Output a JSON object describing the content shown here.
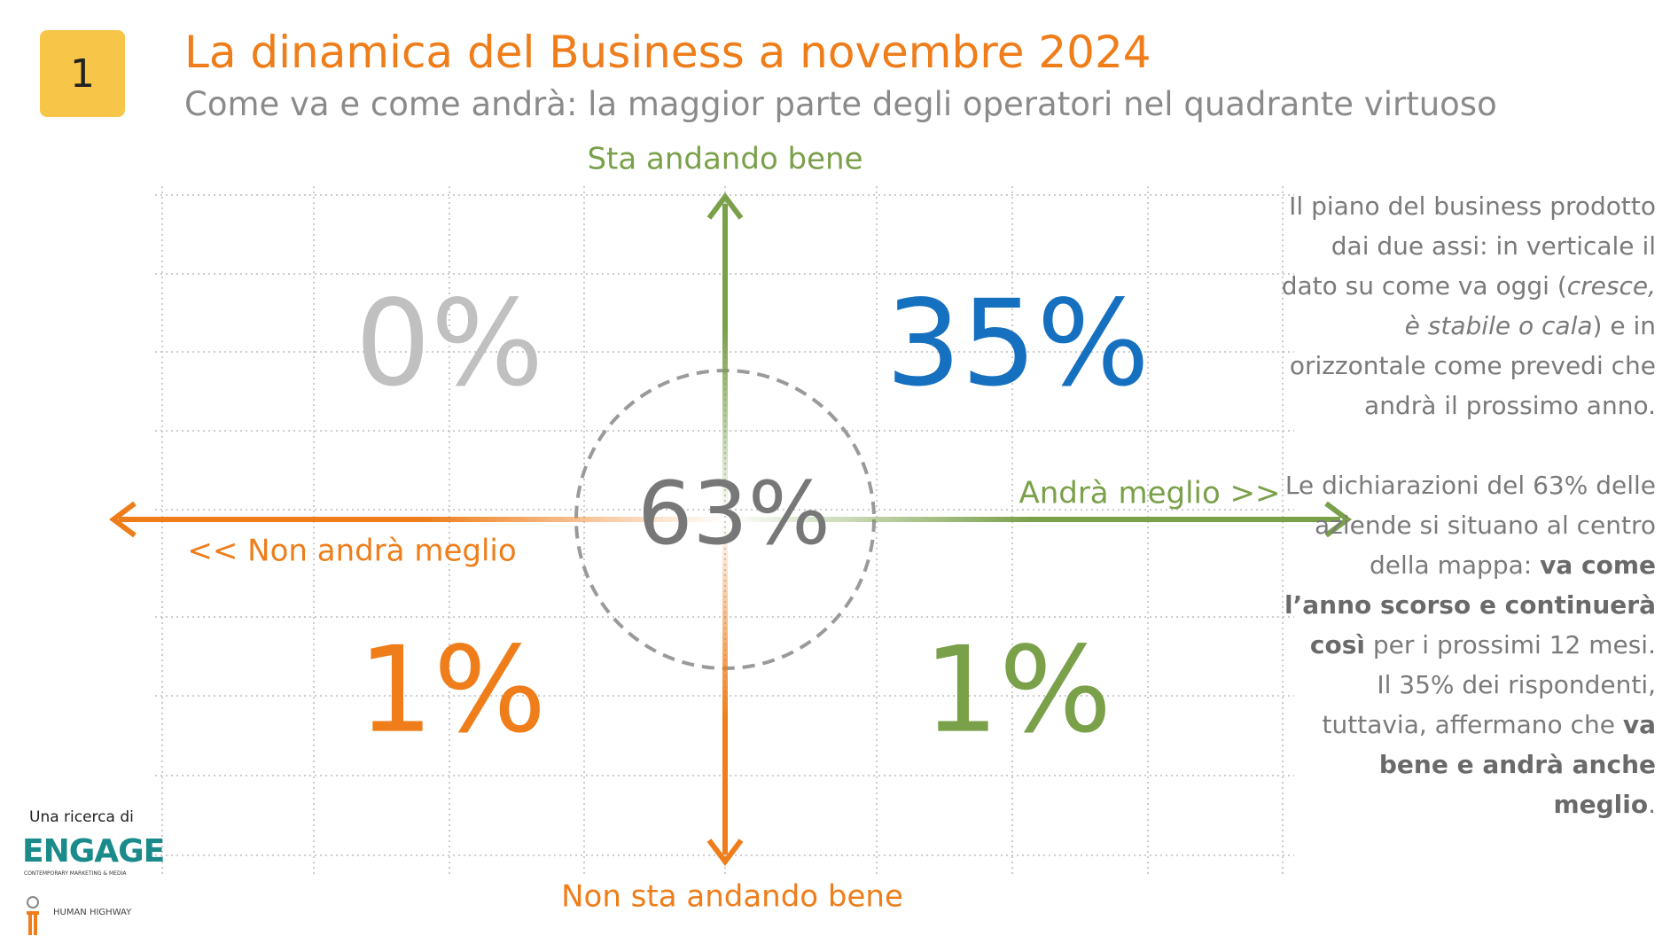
{
  "badge": "1",
  "header": {
    "title": "La dinamica del Business a novembre 2024",
    "subtitle": "Come va e come andrà: la maggior parte degli operatori nel quadrante virtuoso"
  },
  "axes": {
    "top": "Sta andando bene",
    "bottom": "Non sta andando bene",
    "right": "Andrà meglio >>",
    "left": "<< Non andrà meglio"
  },
  "quadrants": {
    "top_left": "0%",
    "top_right": "35%",
    "bottom_left": "1%",
    "bottom_right": "1%",
    "center": "63%"
  },
  "description": {
    "paragraph1": [
      "Il piano del business prodotto dai due assi: in verticale il dato su come va oggi (",
      "cresce, è stabile o cala",
      ") e in orizzontale come prevedi che andrà il prossimo anno."
    ],
    "paragraph2": [
      "Le dichiarazioni del 63% delle aziende si situano al centro della mappa: ",
      "va come l’anno scorso e continuerà così",
      " per i prossimi 12 mesi."
    ],
    "paragraph3": [
      "Il 35% dei rispondenti, tuttavia, affermano che ",
      "va bene e andrà anche meglio",
      "."
    ]
  },
  "footer": {
    "credit": "Una ricerca di",
    "logo1": "ENGAGE",
    "logo1_tagline": "CONTEMPORARY MARKETING & MEDIA",
    "logo2": "HUMAN HIGHWAY"
  }
}
